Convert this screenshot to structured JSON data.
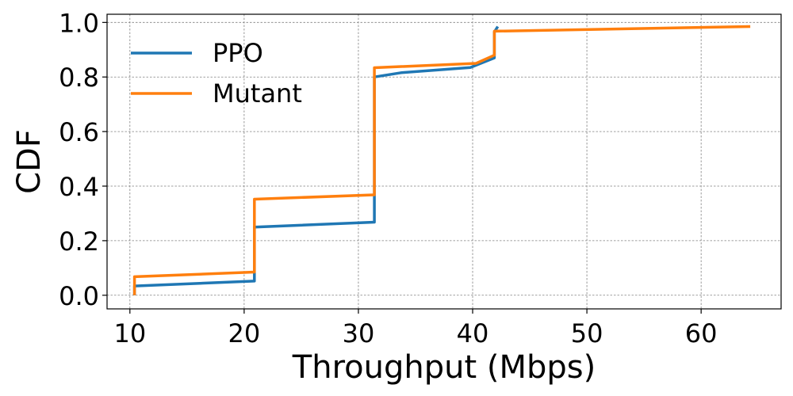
{
  "chart_data": {
    "type": "line",
    "title": "",
    "xlabel": "Throughput (Mbps)",
    "ylabel": "CDF",
    "xlim": [
      8,
      67
    ],
    "ylim": [
      -0.05,
      1.03
    ],
    "xticks": [
      10,
      20,
      30,
      40,
      50,
      60
    ],
    "yticks": [
      0.0,
      0.2,
      0.4,
      0.6,
      0.8,
      1.0
    ],
    "xtick_labels": [
      "10",
      "20",
      "30",
      "40",
      "50",
      "60"
    ],
    "ytick_labels": [
      "0.0",
      "0.2",
      "0.4",
      "0.6",
      "0.8",
      "1.0"
    ],
    "grid": true,
    "legend_position": "upper-left",
    "series": [
      {
        "name": "PPO",
        "color": "#1f77b4",
        "x": [
          10.4,
          10.4,
          20.9,
          20.9,
          31.4,
          31.4,
          33.8,
          39.8,
          41.9,
          41.9,
          42.2
        ],
        "y": [
          0.0,
          0.034,
          0.052,
          0.25,
          0.268,
          0.8,
          0.816,
          0.835,
          0.87,
          0.965,
          0.985
        ]
      },
      {
        "name": "Mutant",
        "color": "#ff7f0e",
        "x": [
          10.4,
          10.4,
          20.9,
          20.9,
          31.4,
          31.4,
          40.3,
          41.9,
          41.9,
          64.3
        ],
        "y": [
          0.0,
          0.068,
          0.085,
          0.352,
          0.368,
          0.834,
          0.85,
          0.88,
          0.968,
          0.985
        ]
      }
    ]
  }
}
